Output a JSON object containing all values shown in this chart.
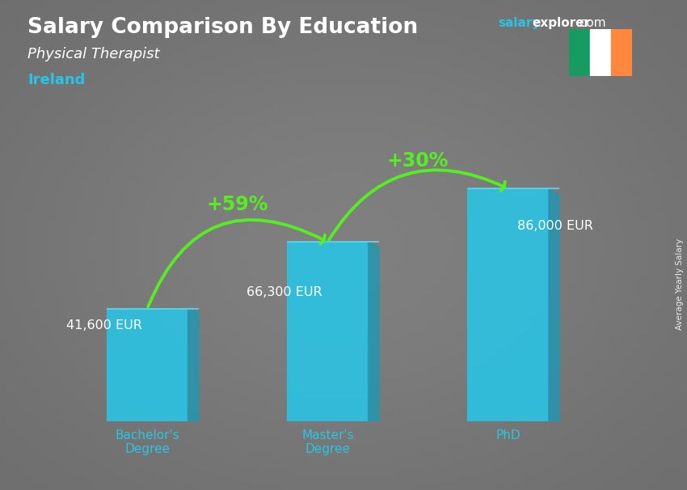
{
  "title": "Salary Comparison By Education",
  "subtitle": "Physical Therapist",
  "country": "Ireland",
  "categories": [
    "Bachelor's\nDegree",
    "Master's\nDegree",
    "PhD"
  ],
  "values": [
    41600,
    66300,
    86000
  ],
  "value_labels": [
    "41,600 EUR",
    "66,300 EUR",
    "86,000 EUR"
  ],
  "bar_color": "#29c5e6",
  "bar_color_side": "#1a9ab8",
  "bar_color_top": "#5dd8ee",
  "pct_changes": [
    "+59%",
    "+30%"
  ],
  "pct_arrow_color": "#55ee22",
  "title_color": "#ffffff",
  "subtitle_color": "#ffffff",
  "country_color": "#29c5e6",
  "xticklabel_color": "#29c5e6",
  "value_label_color": "#ffffff",
  "bg_color": "#606060",
  "website_salary_color": "#29c5e6",
  "website_explorer_color": "#ffffff",
  "rotated_label": "Average Yearly Salary",
  "ylim": [
    0,
    105000
  ],
  "figsize": [
    8.5,
    6.06
  ],
  "dpi": 100,
  "flag_green": "#169b62",
  "flag_white": "#ffffff",
  "flag_orange": "#ff883e"
}
